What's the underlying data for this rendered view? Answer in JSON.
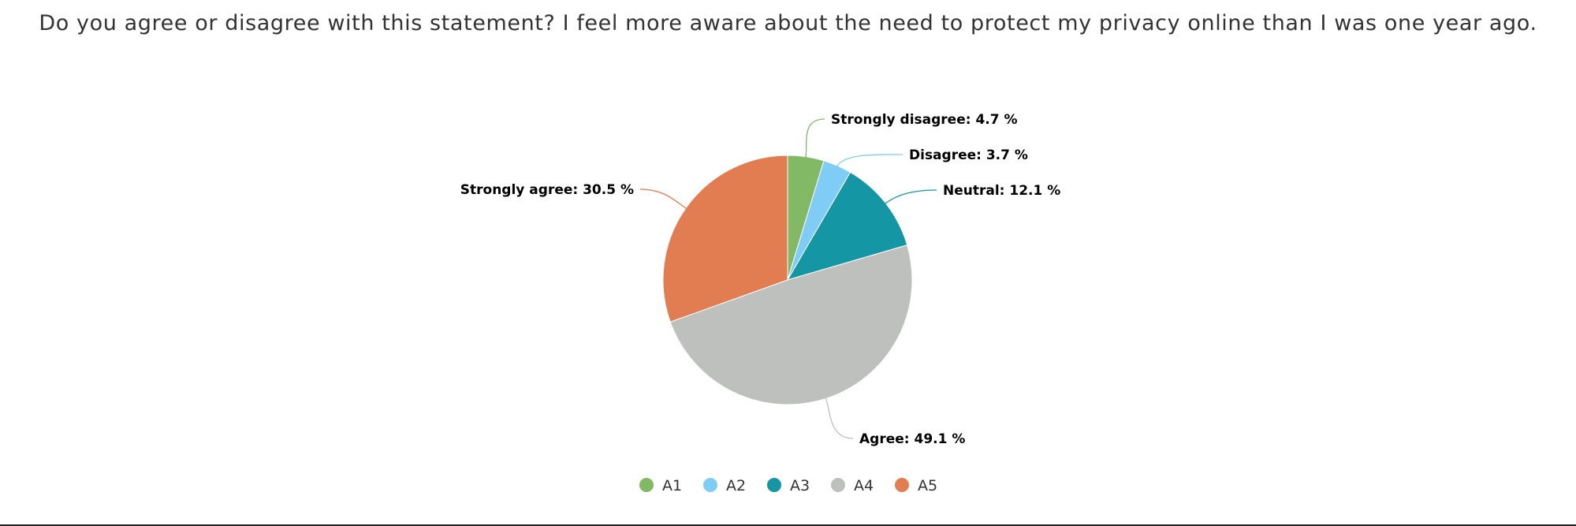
{
  "chart_data": {
    "type": "pie",
    "title": "Do you agree or disagree with this statement? I feel more aware about the need to protect my privacy online than I was one year ago.",
    "slices": [
      {
        "legend": "A1",
        "label": "Strongly disagree",
        "value": 4.7,
        "value_text": "4.7 %",
        "color": "#82b964"
      },
      {
        "legend": "A2",
        "label": "Disagree",
        "value": 3.7,
        "value_text": "3.7 %",
        "color": "#7fcdf6"
      },
      {
        "legend": "A3",
        "label": "Neutral",
        "value": 12.1,
        "value_text": "12.1 %",
        "color": "#1596a5"
      },
      {
        "legend": "A4",
        "label": "Agree",
        "value": 49.1,
        "value_text": "49.1 %",
        "color": "#bdc0bd"
      },
      {
        "legend": "A5",
        "label": "Strongly agree",
        "value": 30.5,
        "value_text": "30.5 %",
        "color": "#e27d52"
      }
    ],
    "legend_position": "bottom",
    "unit": "%"
  }
}
